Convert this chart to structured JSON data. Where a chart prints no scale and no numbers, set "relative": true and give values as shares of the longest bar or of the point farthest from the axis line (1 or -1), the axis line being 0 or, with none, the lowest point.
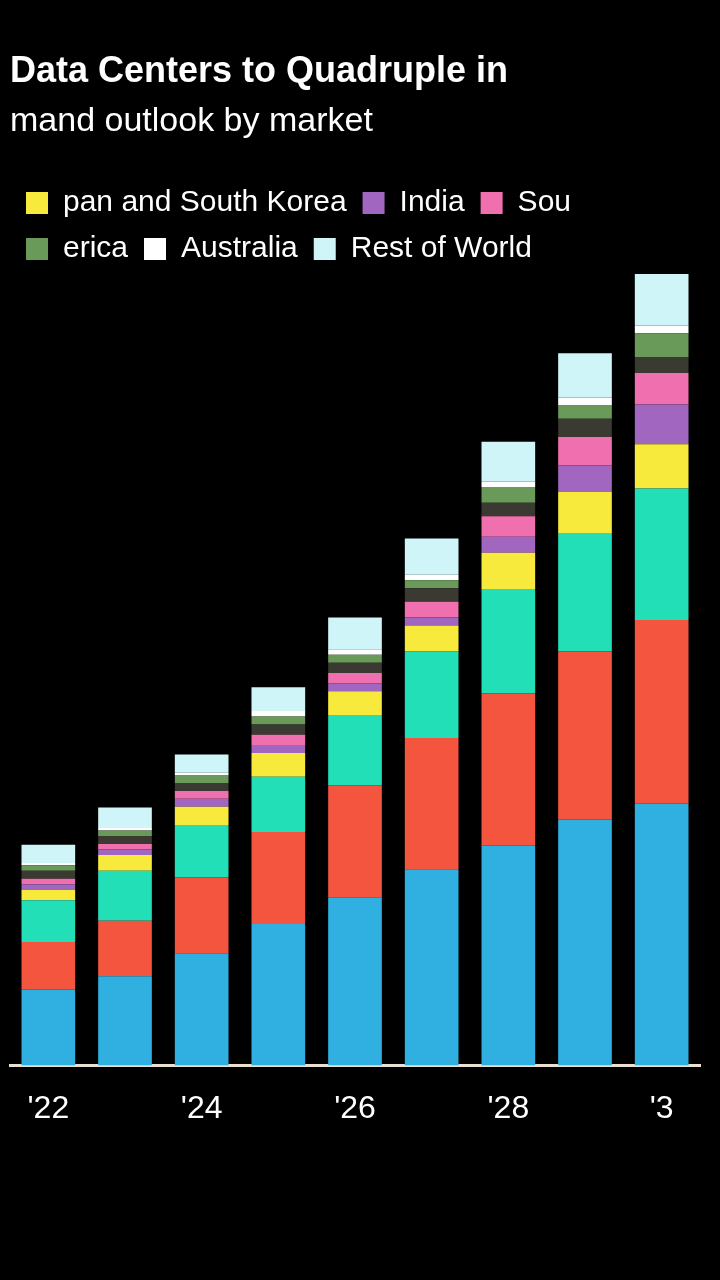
{
  "chart_data": {
    "type": "bar",
    "title": "Data Centers to Quadruple in",
    "subtitle": "mand outlook by market",
    "categories": [
      "'22",
      null,
      "'24",
      null,
      "'26",
      null,
      "'28",
      null,
      "'3"
    ],
    "stacked": true,
    "relative": true,
    "legend": "top",
    "grid": false,
    "series": [
      {
        "color": "#2fb0e0",
        "values": [
          0.096,
          0.113,
          0.142,
          0.179,
          0.212,
          0.248,
          0.278,
          0.311,
          0.331
        ]
      },
      {
        "color": "#f4553e",
        "values": [
          0.06,
          0.07,
          0.096,
          0.116,
          0.142,
          0.166,
          0.192,
          0.212,
          0.232
        ]
      },
      {
        "color": "#23dfb8",
        "values": [
          0.053,
          0.063,
          0.066,
          0.07,
          0.089,
          0.109,
          0.132,
          0.149,
          0.166
        ]
      },
      {
        "name": "pan and South Korea",
        "color": "#f7ea3c",
        "values": [
          0.013,
          0.02,
          0.023,
          0.03,
          0.03,
          0.033,
          0.046,
          0.053,
          0.056
        ]
      },
      {
        "name": "India",
        "color": "#a066c0",
        "values": [
          0.007,
          0.007,
          0.01,
          0.01,
          0.01,
          0.01,
          0.02,
          0.033,
          0.05
        ]
      },
      {
        "name": "Sou",
        "color": "#f06fae",
        "values": [
          0.007,
          0.007,
          0.01,
          0.013,
          0.013,
          0.02,
          0.026,
          0.036,
          0.04
        ]
      },
      {
        "color": "#3a3a32",
        "values": [
          0.01,
          0.01,
          0.01,
          0.013,
          0.013,
          0.017,
          0.017,
          0.023,
          0.02
        ]
      },
      {
        "name": "erica",
        "color": "#6a9a5a",
        "values": [
          0.007,
          0.007,
          0.01,
          0.01,
          0.01,
          0.01,
          0.02,
          0.017,
          0.03
        ]
      },
      {
        "name": "Australia",
        "color": "#ffffff",
        "values": [
          0.003,
          0.003,
          0.003,
          0.007,
          0.007,
          0.007,
          0.007,
          0.01,
          0.01
        ]
      },
      {
        "name": "Rest of World",
        "color": "#cff5f8",
        "values": [
          0.023,
          0.026,
          0.023,
          0.03,
          0.04,
          0.046,
          0.05,
          0.056,
          0.065
        ]
      }
    ]
  }
}
